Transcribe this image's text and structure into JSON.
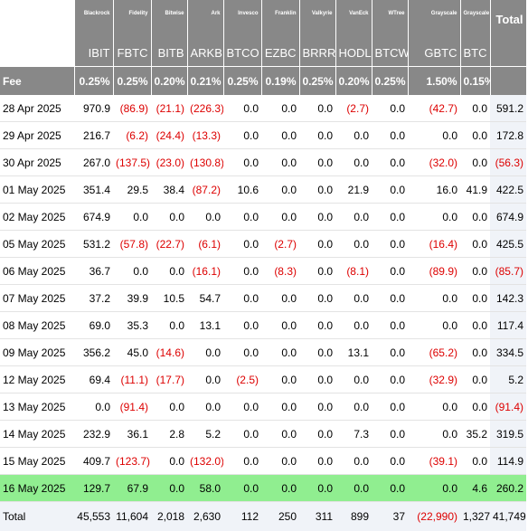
{
  "table": {
    "issuers": [
      "Blackrock",
      "Fidelity",
      "Bitwise",
      "Ark",
      "Invesco",
      "Franklin",
      "Valkyrie",
      "VanEck",
      "WTree",
      "Grayscale",
      "Grayscale"
    ],
    "total_label": "Total",
    "tickers": [
      "IBIT",
      "FBTC",
      "BITB",
      "ARKB",
      "BTCO",
      "EZBC",
      "BRRR",
      "HODL",
      "BTCW",
      "GBTC",
      "BTC"
    ],
    "fee_label": "Fee",
    "fees": [
      "0.25%",
      "0.25%",
      "0.20%",
      "0.21%",
      "0.25%",
      "0.19%",
      "0.25%",
      "0.20%",
      "0.25%",
      "1.50%",
      "0.15%"
    ],
    "rows": [
      {
        "date": "28 Apr 2025",
        "values": [
          "970.9",
          "(86.9)",
          "(21.1)",
          "(226.3)",
          "0.0",
          "0.0",
          "0.0",
          "(2.7)",
          "0.0",
          "(42.7)",
          "0.0"
        ],
        "total": "591.2"
      },
      {
        "date": "29 Apr 2025",
        "values": [
          "216.7",
          "(6.2)",
          "(24.4)",
          "(13.3)",
          "0.0",
          "0.0",
          "0.0",
          "0.0",
          "0.0",
          "0.0",
          "0.0"
        ],
        "total": "172.8"
      },
      {
        "date": "30 Apr 2025",
        "values": [
          "267.0",
          "(137.5)",
          "(23.0)",
          "(130.8)",
          "0.0",
          "0.0",
          "0.0",
          "0.0",
          "0.0",
          "(32.0)",
          "0.0"
        ],
        "total": "(56.3)"
      },
      {
        "date": "01 May 2025",
        "values": [
          "351.4",
          "29.5",
          "38.4",
          "(87.2)",
          "10.6",
          "0.0",
          "0.0",
          "21.9",
          "0.0",
          "16.0",
          "41.9"
        ],
        "total": "422.5"
      },
      {
        "date": "02 May 2025",
        "values": [
          "674.9",
          "0.0",
          "0.0",
          "0.0",
          "0.0",
          "0.0",
          "0.0",
          "0.0",
          "0.0",
          "0.0",
          "0.0"
        ],
        "total": "674.9"
      },
      {
        "date": "05 May 2025",
        "values": [
          "531.2",
          "(57.8)",
          "(22.7)",
          "(6.1)",
          "0.0",
          "(2.7)",
          "0.0",
          "0.0",
          "0.0",
          "(16.4)",
          "0.0"
        ],
        "total": "425.5"
      },
      {
        "date": "06 May 2025",
        "values": [
          "36.7",
          "0.0",
          "0.0",
          "(16.1)",
          "0.0",
          "(8.3)",
          "0.0",
          "(8.1)",
          "0.0",
          "(89.9)",
          "0.0"
        ],
        "total": "(85.7)"
      },
      {
        "date": "07 May 2025",
        "values": [
          "37.2",
          "39.9",
          "10.5",
          "54.7",
          "0.0",
          "0.0",
          "0.0",
          "0.0",
          "0.0",
          "0.0",
          "0.0"
        ],
        "total": "142.3"
      },
      {
        "date": "08 May 2025",
        "values": [
          "69.0",
          "35.3",
          "0.0",
          "13.1",
          "0.0",
          "0.0",
          "0.0",
          "0.0",
          "0.0",
          "0.0",
          "0.0"
        ],
        "total": "117.4"
      },
      {
        "date": "09 May 2025",
        "values": [
          "356.2",
          "45.0",
          "(14.6)",
          "0.0",
          "0.0",
          "0.0",
          "0.0",
          "13.1",
          "0.0",
          "(65.2)",
          "0.0"
        ],
        "total": "334.5"
      },
      {
        "date": "12 May 2025",
        "values": [
          "69.4",
          "(11.1)",
          "(17.7)",
          "0.0",
          "(2.5)",
          "0.0",
          "0.0",
          "0.0",
          "0.0",
          "(32.9)",
          "0.0"
        ],
        "total": "5.2"
      },
      {
        "date": "13 May 2025",
        "values": [
          "0.0",
          "(91.4)",
          "0.0",
          "0.0",
          "0.0",
          "0.0",
          "0.0",
          "0.0",
          "0.0",
          "0.0",
          "0.0"
        ],
        "total": "(91.4)"
      },
      {
        "date": "14 May 2025",
        "values": [
          "232.9",
          "36.1",
          "2.8",
          "5.2",
          "0.0",
          "0.0",
          "0.0",
          "7.3",
          "0.0",
          "0.0",
          "35.2"
        ],
        "total": "319.5"
      },
      {
        "date": "15 May 2025",
        "values": [
          "409.7",
          "(123.7)",
          "0.0",
          "(132.0)",
          "0.0",
          "0.0",
          "0.0",
          "0.0",
          "0.0",
          "(39.1)",
          "0.0"
        ],
        "total": "114.9"
      },
      {
        "date": "16 May 2025",
        "values": [
          "129.7",
          "67.9",
          "0.0",
          "58.0",
          "0.0",
          "0.0",
          "0.0",
          "0.0",
          "0.0",
          "0.0",
          "4.6"
        ],
        "total": "260.2",
        "highlight": true
      }
    ],
    "totals_row": {
      "label": "Total",
      "values": [
        "45,553",
        "11,604",
        "2,018",
        "2,630",
        "112",
        "250",
        "311",
        "899",
        "37",
        "(22,990)",
        "1,327"
      ],
      "total": "41,749"
    },
    "colors": {
      "header_bg": "#888888",
      "negative": "#dd0000",
      "highlight": "#90ee90",
      "total_bg": "#f0f3f8"
    }
  }
}
